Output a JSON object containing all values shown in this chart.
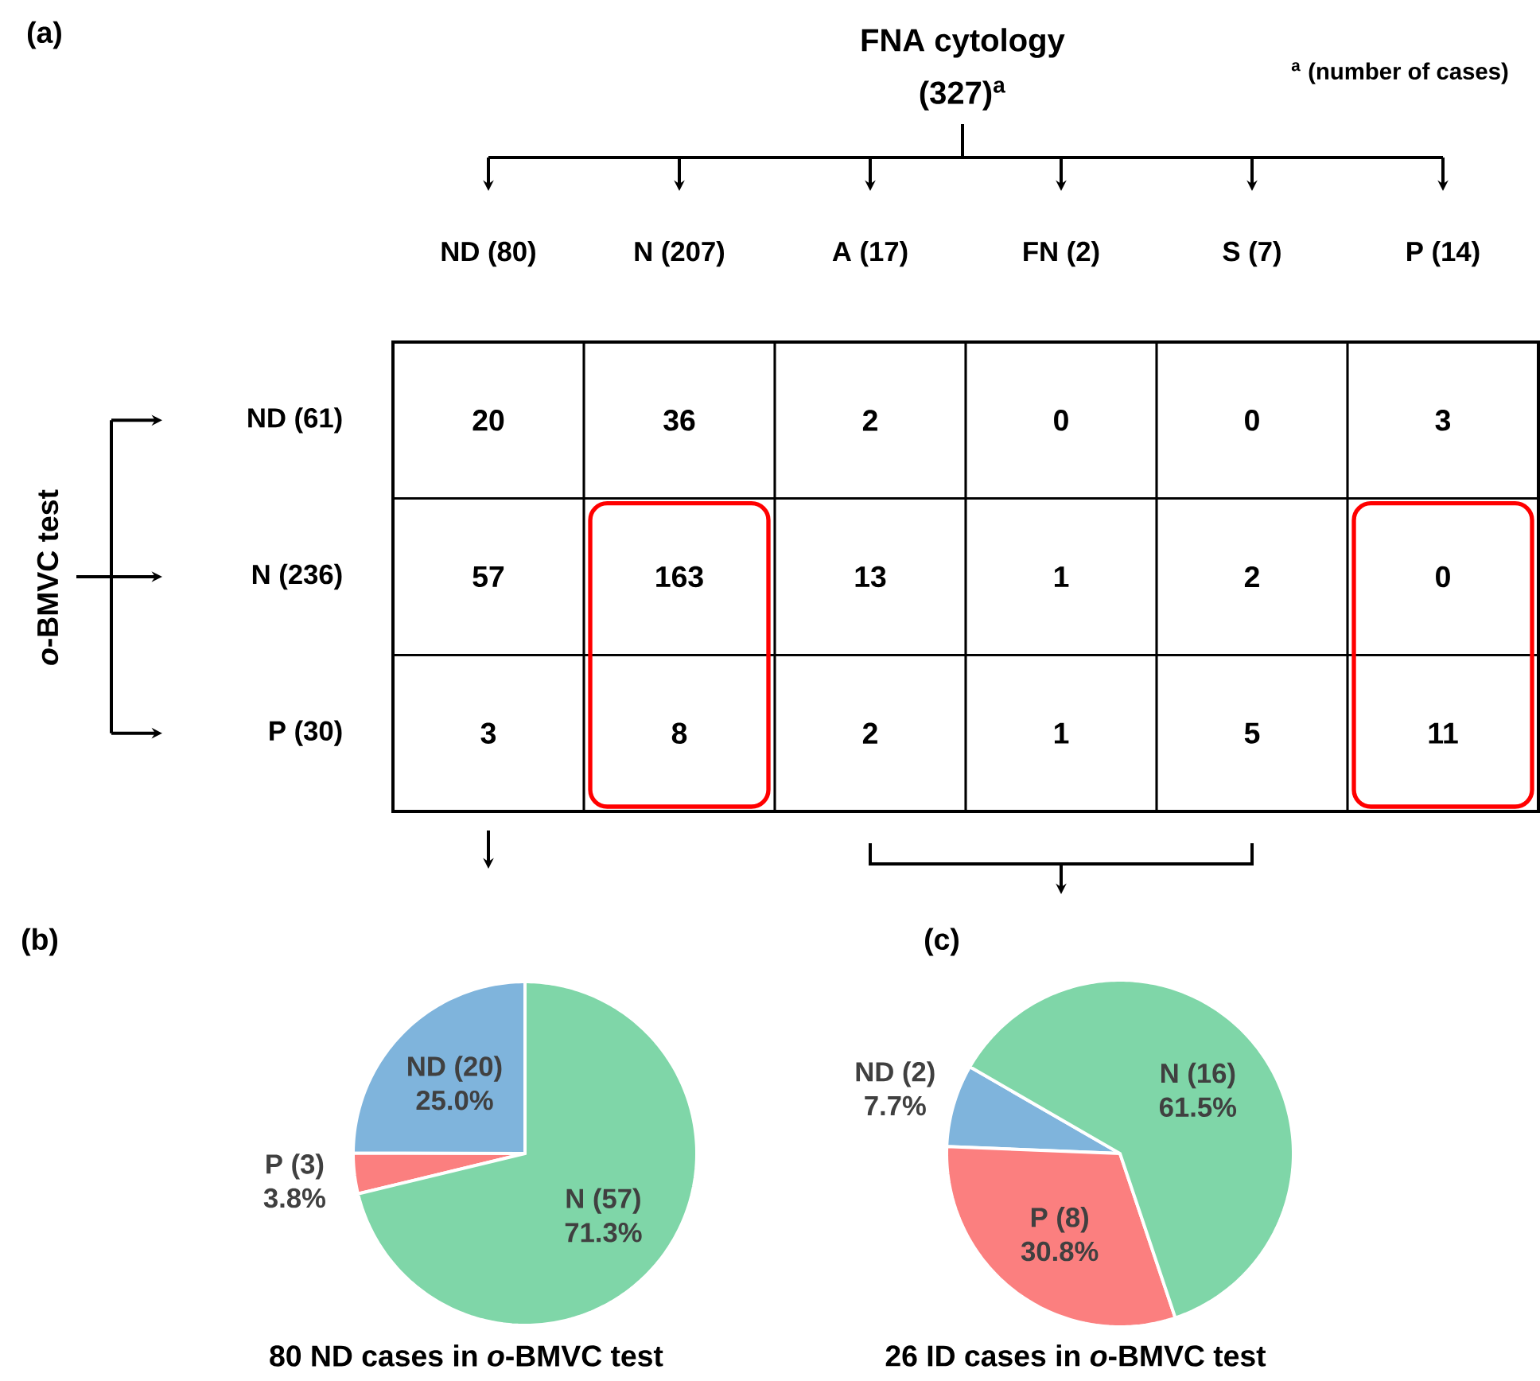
{
  "chart_data": [
    {
      "type": "heatmap",
      "title": "FNA cytology",
      "subtitle": "(327)$^{a}$",
      "ylabel": "*o*-BMVC test",
      "annotations": [
        "(a)",
        "$^{a}$ (number of cases)"
      ],
      "categories": [
        "ND (80)",
        "N (207)",
        "A (17)",
        "FN (2)",
        "S (7)",
        "P (14)"
      ],
      "y_categories": [
        "ND (61)",
        "N (236)",
        "P (30)"
      ],
      "cells": [
        [
          20,
          36,
          2,
          0,
          0,
          3
        ],
        [
          57,
          163,
          13,
          1,
          2,
          0
        ],
        [
          3,
          8,
          2,
          1,
          5,
          11
        ]
      ],
      "data_labels": true
    },
    {
      "type": "pie",
      "title": "80 ND cases in *o*-BMVC test",
      "annotations": [
        "(b)"
      ],
      "categories": [
        "ND (20)",
        "P (3)",
        "N (57)"
      ],
      "values": [
        25.0,
        3.8,
        71.3
      ],
      "value_labels": [
        "25.0%",
        "3.8%",
        "71.3%"
      ],
      "colors": [
        "#7fb4dc",
        "#fb7f7f",
        "#7fd6a8"
      ]
    },
    {
      "type": "pie",
      "title": "26 ID cases in *o*-BMVC test",
      "annotations": [
        "(c)"
      ],
      "categories": [
        "ND (2)",
        "P (8)",
        "N (16)"
      ],
      "values": [
        7.7,
        30.8,
        61.5
      ],
      "value_labels": [
        "7.7%",
        "30.8%",
        "61.5%"
      ],
      "colors": [
        "#7fb4dc",
        "#fb7f7f",
        "#7fd6a8"
      ]
    }
  ]
}
